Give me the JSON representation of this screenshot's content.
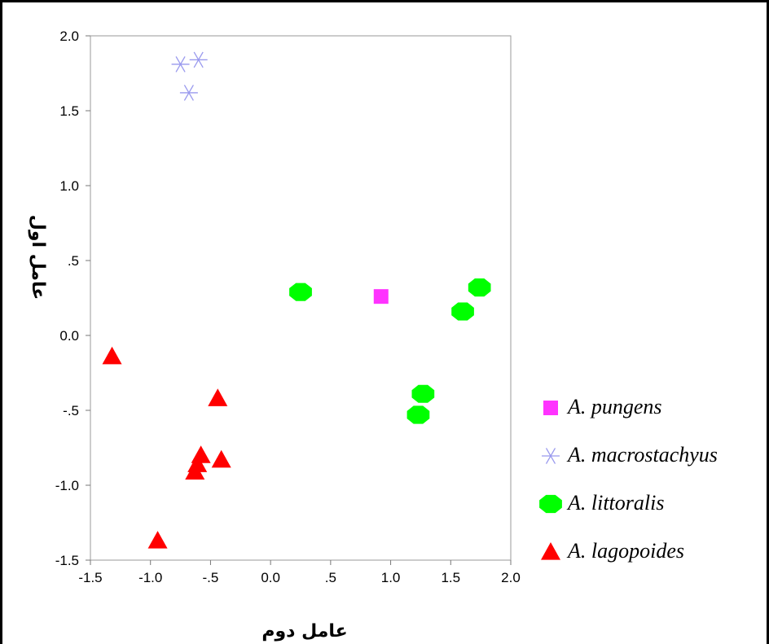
{
  "chart_data": {
    "type": "scatter",
    "title": "",
    "xlabel": "عامل دوم",
    "ylabel": "عامل اول",
    "xlim": [
      -1.5,
      2.0
    ],
    "ylim": [
      -1.5,
      2.0
    ],
    "x_ticks": [
      -1.5,
      -1.0,
      -0.5,
      0.0,
      0.5,
      1.0,
      1.5,
      2.0
    ],
    "x_tick_labels": [
      "-1.5",
      "-1.0",
      "-.5",
      "0.0",
      ".5",
      "1.0",
      "1.5",
      "2.0"
    ],
    "y_ticks": [
      2.0,
      1.5,
      1.0,
      0.5,
      0.0,
      -0.5,
      -1.0,
      -1.5
    ],
    "y_tick_labels": [
      "2.0",
      "1.5",
      "1.0",
      ".5",
      "0.0",
      "-.5",
      "-1.0",
      "-1.5"
    ],
    "grid": false,
    "legend_position": "right",
    "series": [
      {
        "name": "A. pungens",
        "marker": "square",
        "color": "#ff33ff",
        "points": [
          [
            0.92,
            0.26
          ]
        ]
      },
      {
        "name": "A. macrostachyus",
        "marker": "asterisk",
        "color": "#9999ee",
        "points": [
          [
            -0.75,
            1.81
          ],
          [
            -0.6,
            1.84
          ],
          [
            -0.68,
            1.62
          ]
        ]
      },
      {
        "name": "A. littoralis",
        "marker": "octagon",
        "color": "#00ff00",
        "points": [
          [
            0.25,
            0.29
          ],
          [
            1.74,
            0.32
          ],
          [
            1.6,
            0.16
          ],
          [
            1.27,
            -0.39
          ],
          [
            1.23,
            -0.53
          ]
        ]
      },
      {
        "name": "A. lagopoides",
        "marker": "triangle",
        "color": "#ff0000",
        "points": [
          [
            -1.32,
            -0.14
          ],
          [
            -0.44,
            -0.42
          ],
          [
            -0.58,
            -0.8
          ],
          [
            -0.61,
            -0.86
          ],
          [
            -0.41,
            -0.83
          ],
          [
            -0.63,
            -0.91
          ],
          [
            -0.94,
            -1.37
          ]
        ]
      }
    ]
  }
}
